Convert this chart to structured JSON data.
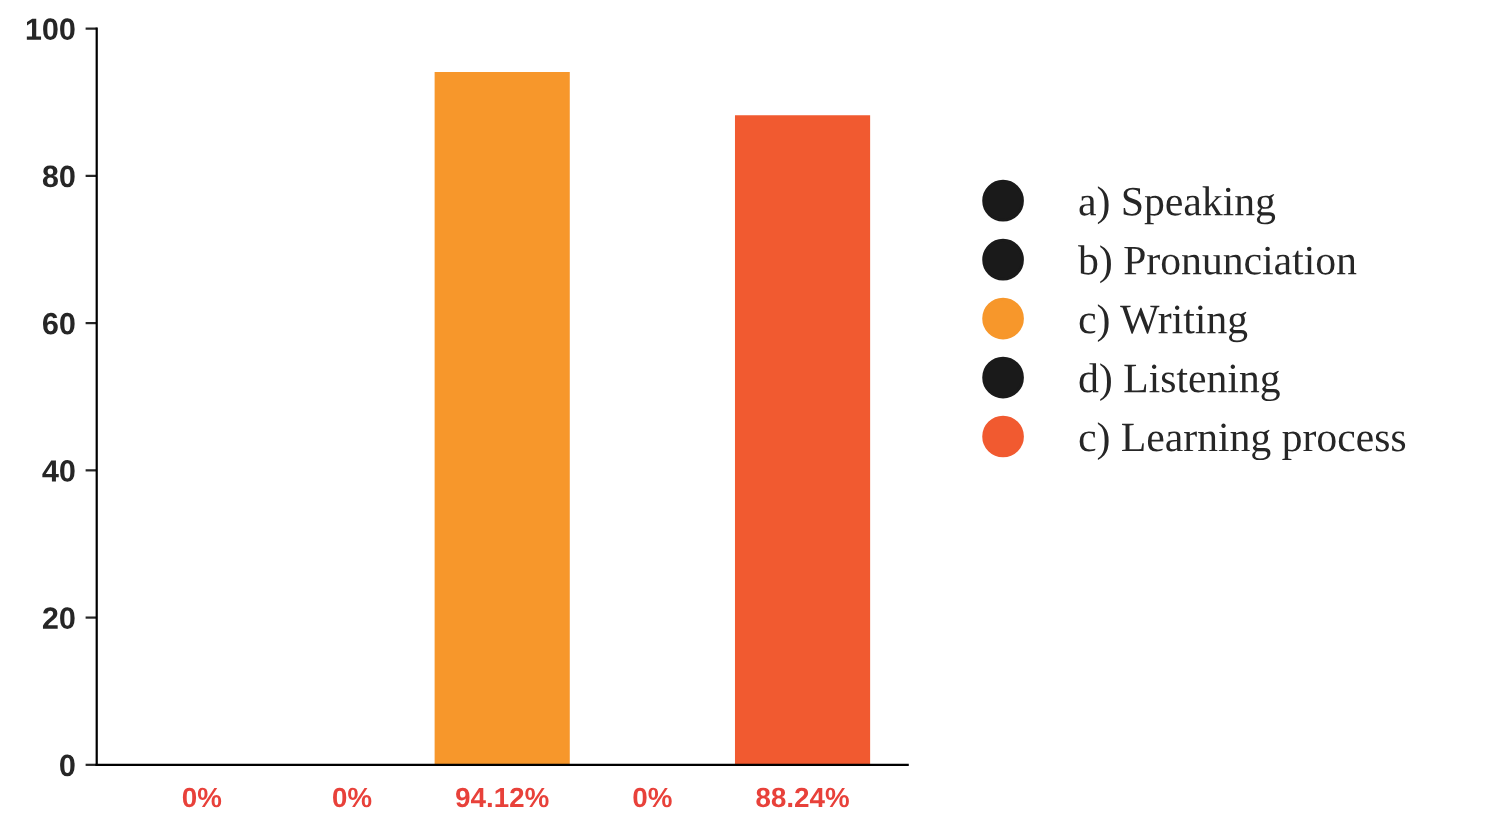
{
  "chart_data": {
    "type": "bar",
    "categories": [
      null,
      null,
      null,
      null,
      null
    ],
    "ylim": [
      0,
      100
    ],
    "yticks": [
      0,
      20,
      40,
      60,
      80,
      100
    ],
    "tick_labels": "y",
    "legend": "right",
    "grid": false,
    "marker": "circle",
    "series": [
      {
        "name": "a) Speaking",
        "color": "#1a1a1a",
        "values": [
          0,
          null,
          null,
          null,
          null
        ],
        "value_labels": [
          "0%",
          null,
          null,
          null,
          null
        ]
      },
      {
        "name": "b) Pronunciation",
        "color": "#1a1a1a",
        "values": [
          null,
          0,
          null,
          null,
          null
        ],
        "value_labels": [
          null,
          "0%",
          null,
          null,
          null
        ]
      },
      {
        "name": "c) Writing",
        "color": "#f7972b",
        "values": [
          null,
          null,
          94.12,
          null,
          null
        ],
        "value_labels": [
          null,
          null,
          "94.12%",
          null,
          null
        ]
      },
      {
        "name": "d) Listening",
        "color": "#1a1a1a",
        "values": [
          null,
          null,
          null,
          0,
          null
        ],
        "value_labels": [
          null,
          null,
          null,
          "0%",
          null
        ]
      },
      {
        "name": "c) Learning process",
        "color": "#f15a30",
        "values": [
          null,
          null,
          null,
          null,
          88.24
        ],
        "value_labels": [
          null,
          null,
          null,
          null,
          "88.24%"
        ]
      }
    ]
  }
}
